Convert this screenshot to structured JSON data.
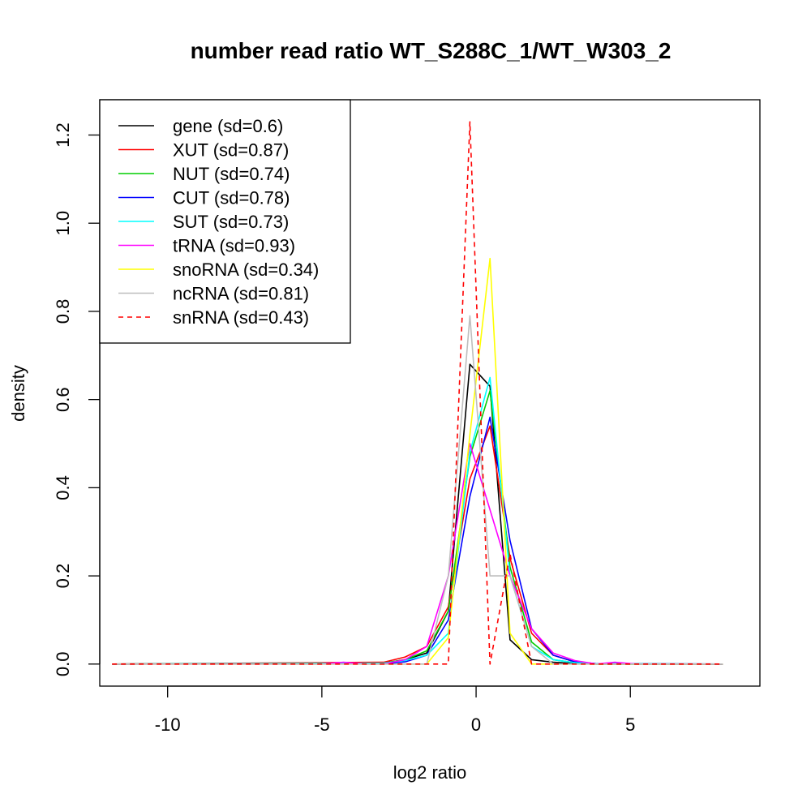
{
  "chart_data": {
    "type": "line",
    "title": "number read ratio WT_S288C_1/WT_W303_2",
    "xlabel": "log2 ratio",
    "ylabel": "density",
    "xlim": [
      -12.2,
      9.2
    ],
    "ylim": [
      -0.05,
      1.28
    ],
    "xticks": [
      -10,
      -5,
      0,
      5
    ],
    "xtick_labels": [
      "-10",
      "-5",
      "0",
      "5"
    ],
    "yticks": [
      0.0,
      0.2,
      0.4,
      0.6,
      0.8,
      1.0,
      1.2
    ],
    "ytick_labels": [
      "0.0",
      "0.2",
      "0.4",
      "0.6",
      "0.8",
      "1.0",
      "1.2"
    ],
    "grid": false,
    "legend_position": "top-left",
    "series": [
      {
        "name": "gene (sd=0.6)",
        "color": "#000000",
        "dash": "solid",
        "x": [
          -11.8,
          -3.0,
          -2.3,
          -1.6,
          -0.9,
          -0.2,
          0.45,
          1.1,
          1.8,
          2.5,
          3.2,
          3.9,
          8.0
        ],
        "y": [
          0.0,
          0.002,
          0.01,
          0.025,
          0.12,
          0.68,
          0.63,
          0.055,
          0.01,
          0.004,
          0.001,
          0.0,
          0.0
        ]
      },
      {
        "name": "XUT (sd=0.87)",
        "color": "#ff0000",
        "dash": "solid",
        "x": [
          -11.8,
          -3.0,
          -2.3,
          -1.6,
          -0.9,
          -0.2,
          0.45,
          1.1,
          1.8,
          2.5,
          3.2,
          3.9,
          8.0
        ],
        "y": [
          0.0,
          0.004,
          0.016,
          0.04,
          0.13,
          0.42,
          0.54,
          0.24,
          0.07,
          0.02,
          0.005,
          0.001,
          0.0
        ]
      },
      {
        "name": "NUT (sd=0.74)",
        "color": "#00cd00",
        "dash": "solid",
        "x": [
          -11.8,
          -3.0,
          -2.3,
          -1.6,
          -0.9,
          -0.2,
          0.45,
          1.1,
          1.8,
          2.5,
          3.2,
          3.9,
          8.0
        ],
        "y": [
          0.0,
          0.002,
          0.01,
          0.03,
          0.12,
          0.47,
          0.62,
          0.22,
          0.05,
          0.01,
          0.003,
          0.0,
          0.0
        ]
      },
      {
        "name": "CUT (sd=0.78)",
        "color": "#0000ff",
        "dash": "solid",
        "x": [
          -11.8,
          -3.0,
          -2.3,
          -1.6,
          -0.9,
          -0.2,
          0.45,
          1.1,
          1.8,
          2.5,
          3.2,
          3.9,
          8.0
        ],
        "y": [
          0.0,
          0.001,
          0.005,
          0.02,
          0.1,
          0.38,
          0.56,
          0.28,
          0.08,
          0.02,
          0.005,
          0.001,
          0.0
        ]
      },
      {
        "name": "SUT (sd=0.73)",
        "color": "#00ffff",
        "dash": "solid",
        "x": [
          -11.8,
          -3.0,
          -2.3,
          -1.6,
          -0.9,
          -0.2,
          0.45,
          1.1,
          1.8,
          2.5,
          3.2,
          3.9,
          8.0
        ],
        "y": [
          0.0,
          0.002,
          0.008,
          0.02,
          0.07,
          0.48,
          0.65,
          0.2,
          0.04,
          0.01,
          0.003,
          0.001,
          0.0
        ]
      },
      {
        "name": "tRNA (sd=0.93)",
        "color": "#ff00ff",
        "dash": "solid",
        "x": [
          -11.8,
          -5.0,
          -4.3,
          -3.6,
          -3.0,
          -2.3,
          -1.6,
          -0.9,
          -0.2,
          0.45,
          1.1,
          1.8,
          2.5,
          3.2,
          3.9,
          4.5,
          5.2,
          8.0
        ],
        "y": [
          0.0,
          0.0,
          0.004,
          0.0,
          0.0,
          0.01,
          0.04,
          0.2,
          0.5,
          0.35,
          0.2,
          0.08,
          0.025,
          0.008,
          0.0,
          0.004,
          0.0,
          0.0
        ]
      },
      {
        "name": "snoRNA (sd=0.34)",
        "color": "#ffff00",
        "dash": "solid",
        "x": [
          -11.8,
          -1.6,
          -0.9,
          -0.2,
          0.45,
          1.1,
          1.8,
          2.5,
          8.0
        ],
        "y": [
          0.0,
          0.0,
          0.06,
          0.52,
          0.92,
          0.07,
          0.0,
          0.0,
          0.0
        ]
      },
      {
        "name": "ncRNA (sd=0.81)",
        "color": "#bebebe",
        "dash": "solid",
        "x": [
          -11.8,
          -2.3,
          -1.6,
          -0.9,
          -0.2,
          0.45,
          1.1,
          1.8,
          2.5,
          3.2,
          8.0
        ],
        "y": [
          0.0,
          0.0,
          0.0,
          0.2,
          0.79,
          0.2,
          0.2,
          0.04,
          0.0,
          0.0,
          0.0
        ]
      },
      {
        "name": "snRNA (sd=0.43)",
        "color": "#ff0000",
        "dash": "dashed",
        "x": [
          -11.8,
          -0.9,
          -0.2,
          0.45,
          1.1,
          1.8,
          2.5,
          8.0
        ],
        "y": [
          0.0,
          0.0,
          1.23,
          0.0,
          0.25,
          0.0,
          0.0,
          0.0
        ]
      }
    ]
  }
}
